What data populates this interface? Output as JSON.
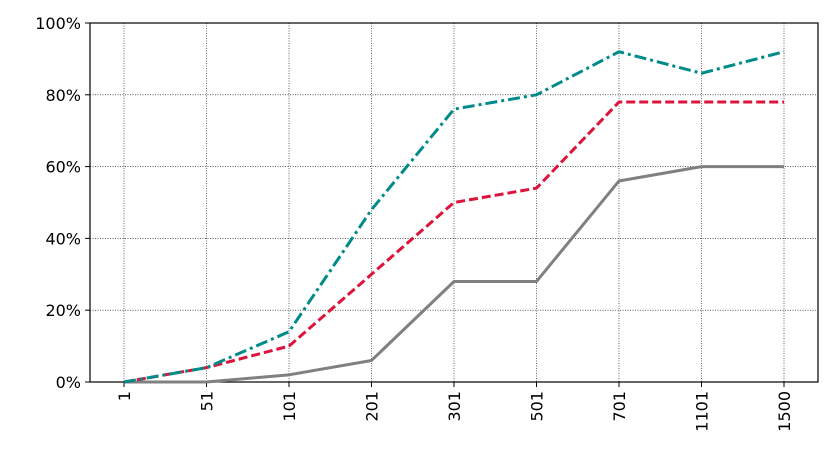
{
  "chart_data": {
    "type": "line",
    "categories": [
      "1",
      "51",
      "101",
      "201",
      "301",
      "501",
      "701",
      "1101",
      "1500"
    ],
    "series": [
      {
        "color": "#808080",
        "linestyle": "solid",
        "values": [
          0,
          0,
          2,
          6,
          28,
          28,
          56,
          60,
          60
        ]
      },
      {
        "color": "#dc143c",
        "linestyle": "dashed",
        "values": [
          0,
          4,
          10,
          30,
          50,
          54,
          78,
          78,
          78
        ]
      },
      {
        "color": "#008b8b",
        "linestyle": "dashdot",
        "values": [
          0,
          4,
          14,
          48,
          76,
          80,
          92,
          86,
          92
        ]
      }
    ],
    "ylim": [
      0,
      100
    ],
    "yticks": [
      {
        "value": 0,
        "label": "0%"
      },
      {
        "value": 20,
        "label": "20%"
      },
      {
        "value": 40,
        "label": "40%"
      },
      {
        "value": 60,
        "label": "60%"
      },
      {
        "value": 80,
        "label": "80%"
      },
      {
        "value": 100,
        "label": "100%"
      }
    ],
    "grid": true
  }
}
